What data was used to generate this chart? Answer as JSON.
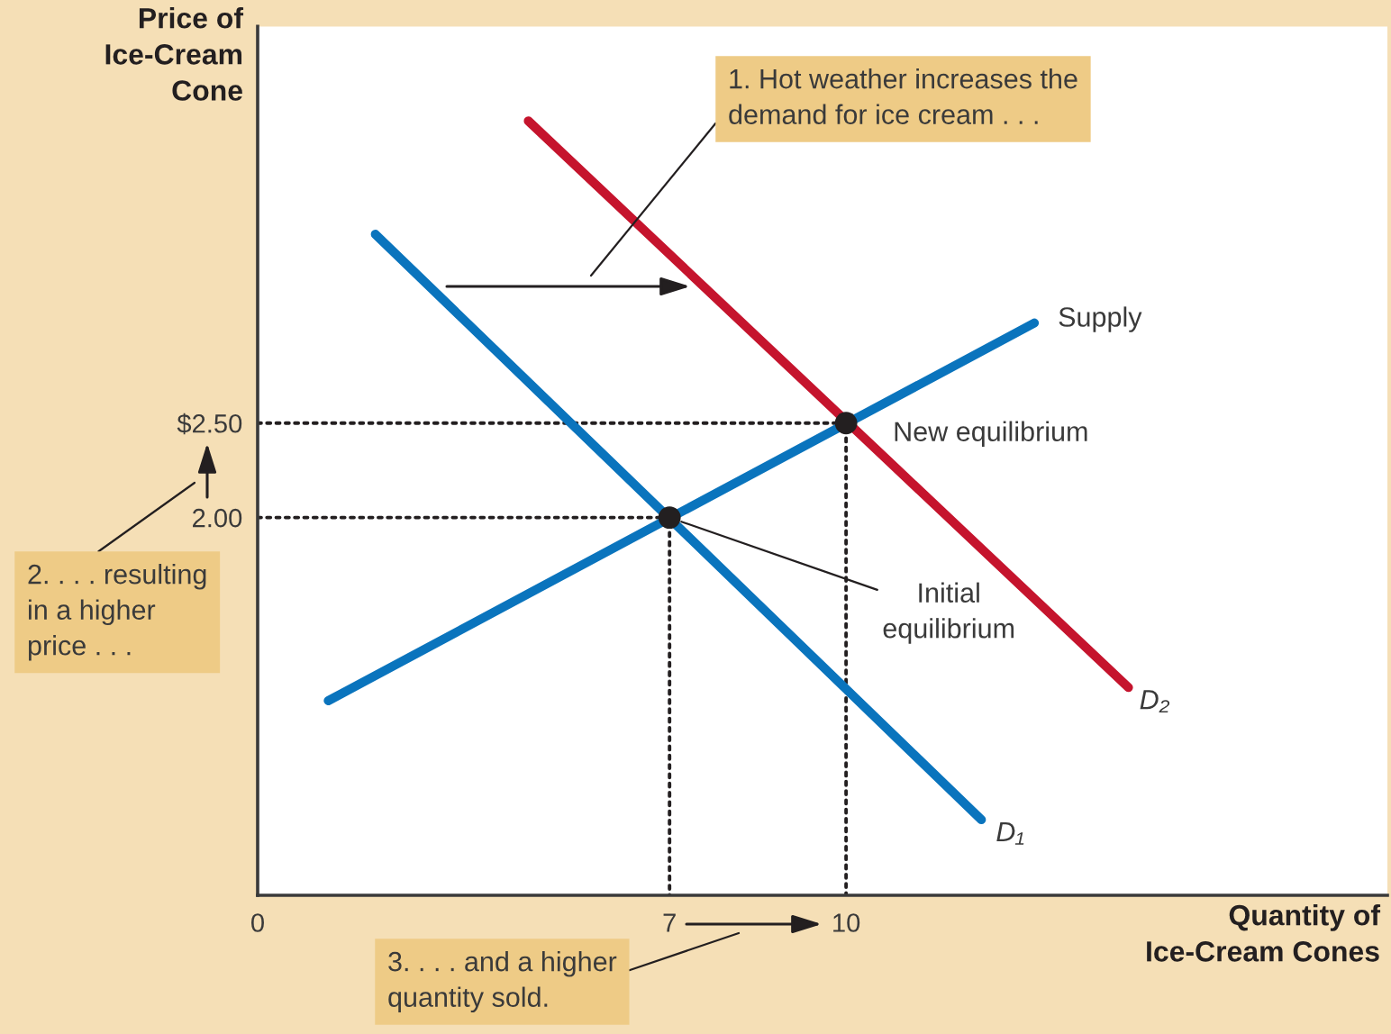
{
  "chart_data": {
    "type": "line",
    "xlabel": "Quantity of\nIce-Cream Cones",
    "ylabel": "Price of\nIce-Cream\nCone",
    "xlim": [
      0,
      19.2
    ],
    "ylim": [
      0,
      4.6
    ],
    "xticks": [
      0,
      7,
      10
    ],
    "yticks": [
      {
        "value": 2,
        "label": "2.00"
      },
      {
        "value": 2.5,
        "label": "$2.50"
      }
    ],
    "series": [
      {
        "name": "Supply",
        "color": "#0a74bd",
        "x": [
          1.2,
          13.2
        ],
        "values": [
          1.03,
          3.03
        ]
      },
      {
        "name": "D₁",
        "color": "#0a74bd",
        "x": [
          2.0,
          12.3
        ],
        "values": [
          3.5,
          0.4
        ]
      },
      {
        "name": "D₂",
        "color": "#c5142d",
        "x": [
          4.6,
          14.8
        ],
        "values": [
          4.1,
          1.1
        ]
      },
      {
        "color": "#231f20",
        "x": [
          0,
          7,
          7
        ],
        "values": [
          2,
          2,
          0
        ],
        "line_style": "dotted"
      },
      {
        "color": "#231f20",
        "x": [
          0,
          10,
          10
        ],
        "values": [
          2.5,
          2.5,
          0
        ],
        "line_style": "dotted"
      },
      {
        "type": "scatter",
        "color": "#231f20",
        "x": [
          7,
          10
        ],
        "values": [
          2,
          2.5
        ],
        "marker": "circle"
      }
    ],
    "annotations": [
      "1. Hot weather increases the\ndemand for ice cream . . .",
      {
        "text": "New equilibrium",
        "x": 10,
        "y": 2.5
      },
      {
        "text": "Initial\nequilibrium",
        "x": 7,
        "y": 2
      },
      "2. . . . resulting\nin a higher\nprice . . .",
      "3. . . . and a higher\nquantity sold."
    ]
  }
}
